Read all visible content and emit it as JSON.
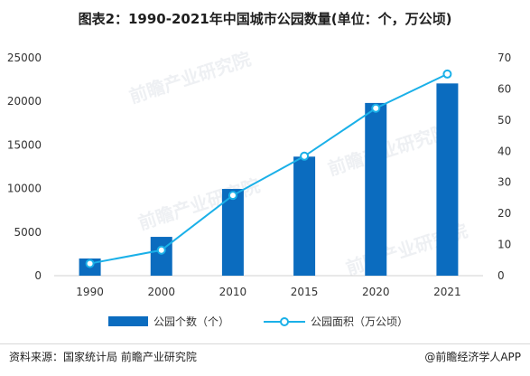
{
  "title": "图表2：1990-2021年中国城市公园数量(单位：个，万公顷)",
  "chart_data": {
    "type": "bar",
    "title": "图表2：1990-2021年中国城市公园数量(单位：个，万公顷)",
    "categories": [
      "1990",
      "2000",
      "2010",
      "2015",
      "2020",
      "2021"
    ],
    "series": [
      {
        "name": "公园个数（个）",
        "type": "bar",
        "axis": "left",
        "color": "#0b6cbf",
        "values": [
          1970,
          4455,
          9955,
          13662,
          19823,
          22062
        ]
      },
      {
        "name": "公园面积（万公顷）",
        "type": "line",
        "axis": "right",
        "color": "#1ab0e8",
        "values": [
          3.9,
          8.2,
          25.8,
          38.4,
          53.8,
          64.8
        ]
      }
    ],
    "y_left": {
      "min": 0,
      "max": 25000,
      "ticks": [
        "0",
        "5000",
        "10000",
        "15000",
        "20000",
        "25000"
      ]
    },
    "y_right": {
      "min": 0,
      "max": 70,
      "ticks": [
        "0",
        "10",
        "20",
        "30",
        "40",
        "50",
        "60",
        "70"
      ]
    },
    "grid": false,
    "legend_position": "bottom"
  },
  "watermark_text": "前瞻产业研究院",
  "footer": {
    "source": "资料来源：国家统计局 前瞻产业研究院",
    "brand": "@前瞻经济学人APP"
  }
}
